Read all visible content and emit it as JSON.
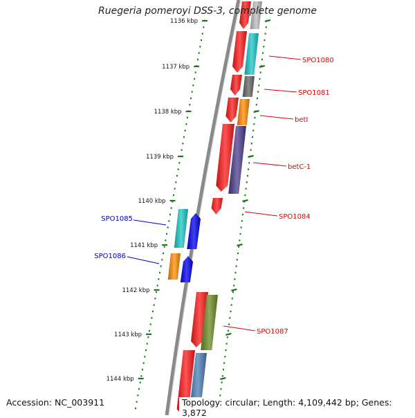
{
  "title": "Ruegeria pomeroyi DSS-3, complete genome",
  "accession": "Accession: NC_003911",
  "topology": "Topology: circular; Length: 4,109,442 bp; Genes: 3,872",
  "ticks": [
    {
      "label": "1136 kbp",
      "kbp": 1136
    },
    {
      "label": "1137 kbp",
      "kbp": 1137
    },
    {
      "label": "1138 kbp",
      "kbp": 1138
    },
    {
      "label": "1139 kbp",
      "kbp": 1139
    },
    {
      "label": "1140 kbp",
      "kbp": 1140
    },
    {
      "label": "1141 kbp",
      "kbp": 1141
    },
    {
      "label": "1142 kbp",
      "kbp": 1142
    },
    {
      "label": "1143 kbp",
      "kbp": 1143
    },
    {
      "label": "1144 kbp",
      "kbp": 1144
    }
  ],
  "gene_labels": [
    {
      "name": "SPO1080",
      "strand": "forward",
      "color": "#dd0000"
    },
    {
      "name": "SPO1081",
      "strand": "forward",
      "color": "#dd0000"
    },
    {
      "name": "betI",
      "strand": "forward",
      "color": "#dd0000"
    },
    {
      "name": "betC-1",
      "strand": "forward",
      "color": "#dd0000"
    },
    {
      "name": "SPO1084",
      "strand": "forward",
      "color": "#dd0000"
    },
    {
      "name": "SPO1085",
      "strand": "reverse",
      "color": "#0000bb"
    },
    {
      "name": "SPO1086",
      "strand": "reverse",
      "color": "#0000bb"
    },
    {
      "name": "SPO1087",
      "strand": "forward",
      "color": "#dd0000"
    }
  ],
  "colors": {
    "backbone": "#8a8a8a",
    "tick": "#1a7a1a",
    "cds_forward": "#ff1a1a",
    "cds_reverse": "#0000ee",
    "cog_cyan": "#1cc6c6",
    "cog_gray": "#666666",
    "cog_orange": "#ff8c00",
    "cog_purple": "#4b3c8c",
    "cog_olive": "#6b8c23",
    "cog_steelblue": "#4a7eb5",
    "cog_silver": "#bbbbbb"
  }
}
